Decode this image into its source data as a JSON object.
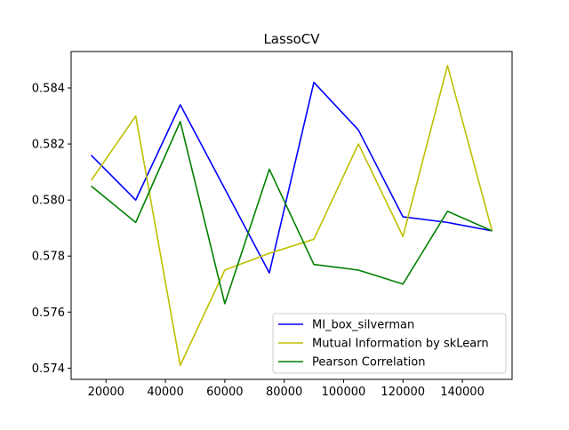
{
  "chart_data": {
    "type": "line",
    "title": "LassoCV",
    "xlabel": "",
    "ylabel": "",
    "xlim": [
      8250,
      156750
    ],
    "ylim": [
      0.5736,
      0.5853
    ],
    "xticks": [
      20000,
      40000,
      60000,
      80000,
      100000,
      120000,
      140000
    ],
    "xtick_labels": [
      "20000",
      "40000",
      "60000",
      "80000",
      "100000",
      "120000",
      "140000"
    ],
    "yticks": [
      0.574,
      0.576,
      0.578,
      0.58,
      0.582,
      0.584
    ],
    "ytick_labels": [
      "0.574",
      "0.576",
      "0.578",
      "0.580",
      "0.582",
      "0.584"
    ],
    "x": [
      15000,
      30000,
      45000,
      60000,
      75000,
      90000,
      105000,
      120000,
      135000,
      150000
    ],
    "grid": false,
    "legend_position": "lower-right",
    "series": [
      {
        "name": "MI_box_silverman",
        "color": "#0000ff",
        "values": [
          0.5816,
          0.58,
          0.5834,
          0.5804,
          0.5774,
          0.5842,
          0.5825,
          0.5794,
          0.5792,
          0.5789
        ]
      },
      {
        "name": "Mutual Information by skLearn",
        "color": "#bfbf00",
        "values": [
          0.5807,
          0.583,
          0.5741,
          0.5775,
          0.5781,
          0.5786,
          0.582,
          0.5787,
          0.5848,
          0.5789
        ]
      },
      {
        "name": "Pearson Correlation",
        "color": "#008000",
        "values": [
          0.5805,
          0.5792,
          0.5828,
          0.5763,
          0.5811,
          0.5777,
          0.5775,
          0.577,
          0.5796,
          0.5789
        ]
      }
    ]
  }
}
